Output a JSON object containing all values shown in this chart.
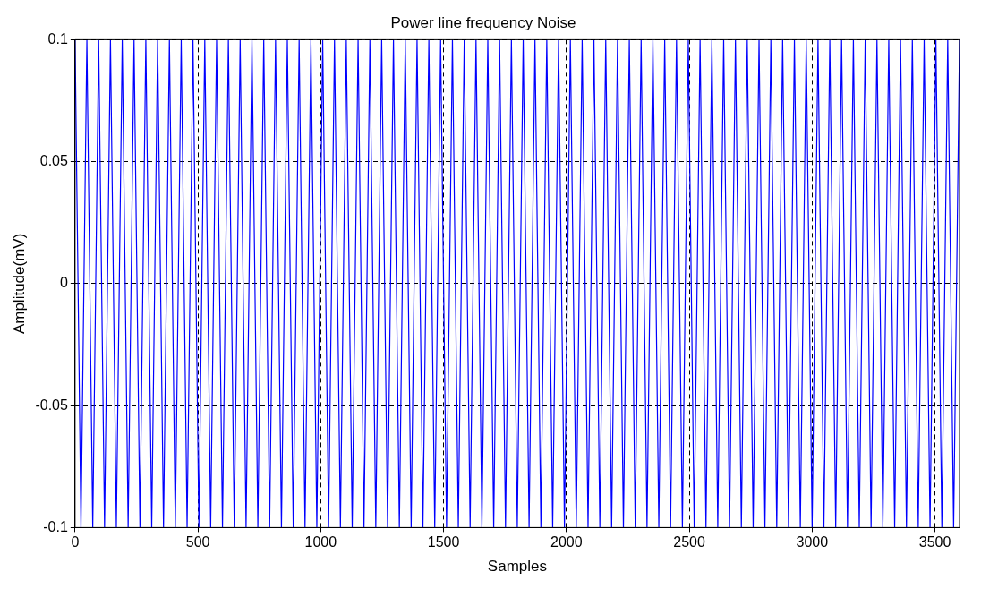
{
  "chart_data": {
    "type": "line",
    "title": "Power line frequency Noise",
    "xlabel": "Samples",
    "ylabel": "Amplitude(mV)",
    "x": [
      0,
      24,
      48,
      72,
      96,
      120,
      144,
      168,
      192,
      216,
      240,
      264,
      288,
      312,
      336,
      360,
      384,
      408,
      432,
      456,
      480,
      504,
      528,
      552,
      576,
      600,
      624,
      648,
      672,
      696,
      720,
      744,
      768,
      792,
      816,
      840,
      864,
      888,
      912,
      936,
      960,
      984,
      1008,
      1032,
      1056,
      1080,
      1104,
      1128,
      1152,
      1176,
      1200,
      1224,
      1248,
      1272,
      1296,
      1320,
      1344,
      1368,
      1392,
      1416,
      1440,
      1464,
      1488,
      1512,
      1536,
      1560,
      1584,
      1608,
      1632,
      1656,
      1680,
      1704,
      1728,
      1752,
      1776,
      1800,
      1824,
      1848,
      1872,
      1896,
      1920,
      1944,
      1968,
      1992,
      2016,
      2040,
      2064,
      2088,
      2112,
      2136,
      2160,
      2184,
      2208,
      2232,
      2256,
      2280,
      2304,
      2328,
      2352,
      2376,
      2400,
      2424,
      2448,
      2472,
      2496,
      2520,
      2544,
      2568,
      2592,
      2616,
      2640,
      2664,
      2688,
      2712,
      2736,
      2760,
      2784,
      2808,
      2832,
      2856,
      2880,
      2904,
      2928,
      2952,
      2976,
      3000,
      3024,
      3048,
      3072,
      3096,
      3120,
      3144,
      3168,
      3192,
      3216,
      3240,
      3264,
      3288,
      3312,
      3336,
      3360,
      3384,
      3408,
      3432,
      3456,
      3480,
      3504,
      3528,
      3552,
      3576,
      3600
    ],
    "series": [
      {
        "color": "#0000ff",
        "values": [
          0.1,
          -0.1,
          0.1,
          -0.1,
          0.1,
          -0.1,
          0.1,
          -0.1,
          0.1,
          -0.1,
          0.1,
          -0.1,
          0.1,
          -0.1,
          0.1,
          -0.1,
          0.1,
          -0.1,
          0.1,
          -0.1,
          0.1,
          -0.1,
          0.1,
          -0.1,
          0.1,
          -0.1,
          0.1,
          -0.1,
          0.1,
          -0.1,
          0.1,
          -0.1,
          0.1,
          -0.1,
          0.1,
          -0.1,
          0.1,
          -0.1,
          0.1,
          -0.1,
          0.1,
          -0.1,
          0.1,
          -0.1,
          0.1,
          -0.1,
          0.1,
          -0.1,
          0.1,
          -0.1,
          0.1,
          -0.1,
          0.1,
          -0.1,
          0.1,
          -0.1,
          0.1,
          -0.1,
          0.1,
          -0.1,
          0.1,
          -0.1,
          0.1,
          -0.1,
          0.1,
          -0.1,
          0.1,
          -0.1,
          0.1,
          -0.1,
          0.1,
          -0.1,
          0.1,
          -0.1,
          0.1,
          -0.1,
          0.1,
          -0.1,
          0.1,
          -0.1,
          0.1,
          -0.1,
          0.1,
          -0.1,
          0.1,
          -0.1,
          0.1,
          -0.1,
          0.1,
          -0.1,
          0.1,
          -0.1,
          0.1,
          -0.1,
          0.1,
          -0.1,
          0.1,
          -0.1,
          0.1,
          -0.1,
          0.1,
          -0.1,
          0.1,
          -0.1,
          0.1,
          -0.1,
          0.1,
          -0.1,
          0.1,
          -0.1,
          0.1,
          -0.1,
          0.1,
          -0.1,
          0.1,
          -0.1,
          0.1,
          -0.1,
          0.1,
          -0.1,
          0.1,
          -0.1,
          0.1,
          -0.1,
          0.1,
          -0.1,
          0.1,
          -0.1,
          0.1,
          -0.1,
          0.1,
          -0.1,
          0.1,
          -0.1,
          0.1,
          -0.1,
          0.1,
          -0.1,
          0.1,
          -0.1,
          0.1,
          -0.1,
          0.1,
          -0.1,
          0.1,
          -0.1,
          0.1,
          -0.1,
          0.1,
          -0.1,
          0.1
        ]
      }
    ],
    "xlim": [
      0,
      3600
    ],
    "xticks": [
      0,
      500,
      1000,
      1500,
      2000,
      2500,
      3000,
      3500
    ],
    "ylim": [
      -0.1,
      0.1
    ],
    "yticks": [
      -0.1,
      -0.05,
      0,
      0.05,
      0.1
    ],
    "grid": true,
    "legend": false,
    "marker": "none",
    "line_style": "solid"
  }
}
